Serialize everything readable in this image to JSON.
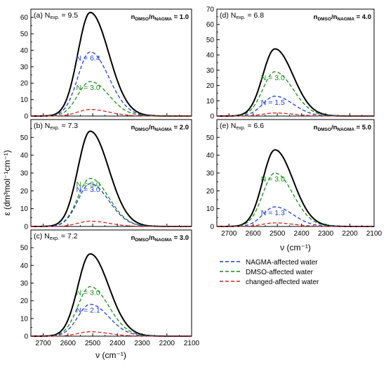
{
  "figure": {
    "y_axis_label": "ε (dm³mol⁻¹cm⁻¹)",
    "x_axis_label": "ν (cm⁻¹)"
  },
  "legend": [
    {
      "label": "NAGMA-affected water",
      "color": "#1f3fd6"
    },
    {
      "label": "DMSO-affected water",
      "color": "#1a8a1a"
    },
    {
      "label": "changed-affected water",
      "color": "#d62020"
    }
  ],
  "colors": {
    "total": "#000000",
    "nagma": "#1f3fd6",
    "dmso": "#1a8a1a",
    "changed": "#d62020"
  },
  "chart_data": [
    {
      "type": "line",
      "panel": "(a)",
      "n_exp": "9.5",
      "ratio": "1.0",
      "xlim": [
        2750,
        2100
      ],
      "ylim": [
        0,
        65
      ],
      "x_ticks": [
        2700,
        2600,
        2500,
        2400,
        2300,
        2200,
        2100
      ],
      "y_ticks": [
        0,
        10,
        20,
        30,
        40,
        50,
        60
      ],
      "series": [
        {
          "key": "total",
          "peak": 63
        },
        {
          "key": "nagma",
          "peak": 39,
          "label": "N = 6.4"
        },
        {
          "key": "dmso",
          "peak": 21,
          "label": "N = 3.0"
        },
        {
          "key": "changed",
          "peak": 4
        }
      ]
    },
    {
      "type": "line",
      "panel": "(b)",
      "n_exp": "7.3",
      "ratio": "2.0",
      "xlim": [
        2750,
        2100
      ],
      "ylim": [
        0,
        60
      ],
      "x_ticks": [
        2700,
        2600,
        2500,
        2400,
        2300,
        2200,
        2100
      ],
      "y_ticks": [
        0,
        10,
        20,
        30,
        40,
        50
      ],
      "series": [
        {
          "key": "total",
          "peak": 53.5
        },
        {
          "key": "dmso",
          "peak": 27,
          "label": "N = 3.0"
        },
        {
          "key": "nagma",
          "peak": 24,
          "label": "N = 3.0"
        },
        {
          "key": "changed",
          "peak": 3
        }
      ]
    },
    {
      "type": "line",
      "panel": "(c)",
      "n_exp": "7.2",
      "ratio": "3.0",
      "xlim": [
        2750,
        2100
      ],
      "ylim": [
        0,
        60
      ],
      "x_ticks": [
        2700,
        2600,
        2500,
        2400,
        2300,
        2200,
        2100
      ],
      "y_ticks": [
        0,
        10,
        20,
        30,
        40,
        50
      ],
      "series": [
        {
          "key": "total",
          "peak": 46.5
        },
        {
          "key": "dmso",
          "peak": 28,
          "label": "N = 3.0"
        },
        {
          "key": "nagma",
          "peak": 18,
          "label": "N = 2.1"
        },
        {
          "key": "changed",
          "peak": 2.5
        }
      ]
    },
    {
      "type": "line",
      "panel": "(d)",
      "n_exp": "6.8",
      "ratio": "4.0",
      "xlim": [
        2750,
        2100
      ],
      "ylim": [
        0,
        70
      ],
      "x_ticks": [
        2700,
        2600,
        2500,
        2400,
        2300,
        2200,
        2100
      ],
      "y_ticks": [
        0,
        10,
        20,
        30,
        40,
        50,
        60,
        70
      ],
      "series": [
        {
          "key": "total",
          "peak": 44
        },
        {
          "key": "dmso",
          "peak": 29,
          "label": "N = 3.0"
        },
        {
          "key": "nagma",
          "peak": 13,
          "label": "N = 1.5"
        },
        {
          "key": "changed",
          "peak": 2
        }
      ]
    },
    {
      "type": "line",
      "panel": "(e)",
      "n_exp": "6.6",
      "ratio": "5.0",
      "xlim": [
        2750,
        2100
      ],
      "ylim": [
        0,
        60
      ],
      "x_ticks": [
        2700,
        2600,
        2500,
        2400,
        2300,
        2200,
        2100
      ],
      "y_ticks": [
        0,
        10,
        20,
        30,
        40,
        50
      ],
      "series": [
        {
          "key": "total",
          "peak": 43
        },
        {
          "key": "dmso",
          "peak": 30,
          "label": "N = 3.0"
        },
        {
          "key": "nagma",
          "peak": 11,
          "label": "N = 1.3"
        },
        {
          "key": "changed",
          "peak": 2
        }
      ]
    }
  ]
}
